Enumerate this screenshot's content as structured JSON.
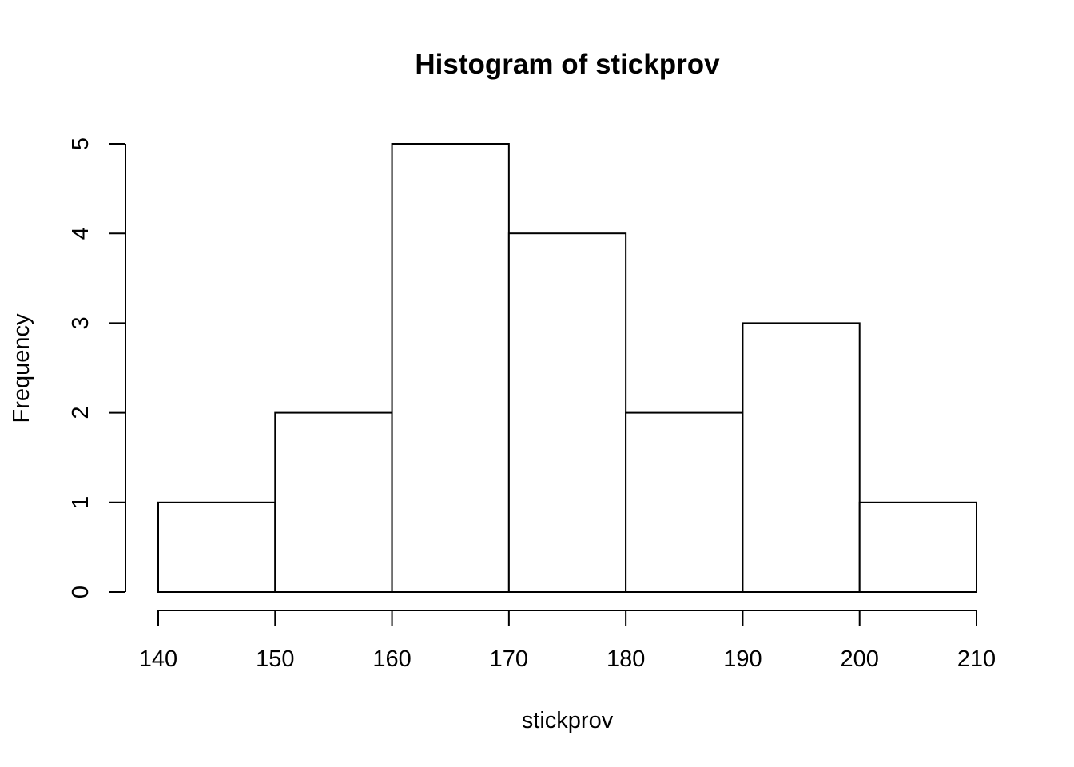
{
  "chart_data": {
    "type": "bar",
    "title": "Histogram of stickprov",
    "xlabel": "stickprov",
    "ylabel": "Frequency",
    "bins": [
      {
        "start": 140,
        "end": 150,
        "count": 1
      },
      {
        "start": 150,
        "end": 160,
        "count": 2
      },
      {
        "start": 160,
        "end": 170,
        "count": 5
      },
      {
        "start": 170,
        "end": 180,
        "count": 4
      },
      {
        "start": 180,
        "end": 190,
        "count": 2
      },
      {
        "start": 190,
        "end": 200,
        "count": 3
      },
      {
        "start": 200,
        "end": 210,
        "count": 1
      }
    ],
    "x_ticks": [
      "140",
      "150",
      "160",
      "170",
      "180",
      "190",
      "200",
      "210"
    ],
    "y_ticks": [
      "0",
      "1",
      "2",
      "3",
      "4",
      "5"
    ],
    "xlim": [
      140,
      210
    ],
    "ylim": [
      0,
      5
    ],
    "grid": false,
    "bar_fill": "#ffffff",
    "bar_stroke": "#000000"
  }
}
